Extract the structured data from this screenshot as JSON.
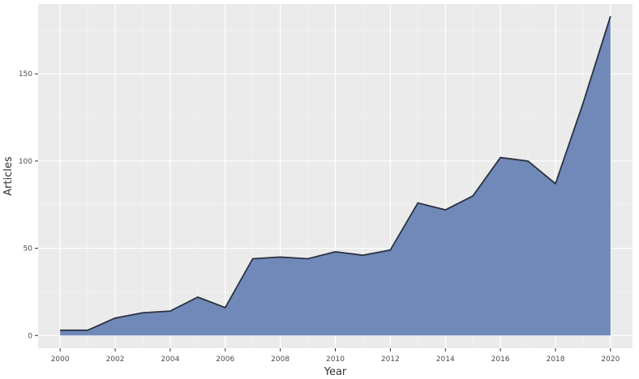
{
  "chart_data": {
    "type": "area",
    "xlabel": "Year",
    "ylabel": "Articles",
    "x": [
      2000,
      2001,
      2002,
      2003,
      2004,
      2005,
      2006,
      2007,
      2008,
      2009,
      2010,
      2011,
      2012,
      2013,
      2014,
      2015,
      2016,
      2017,
      2018,
      2019,
      2020
    ],
    "values": [
      3,
      3,
      10,
      13,
      14,
      22,
      16,
      44,
      45,
      44,
      48,
      46,
      49,
      76,
      72,
      80,
      102,
      100,
      87,
      133,
      183
    ],
    "xlim": [
      1999.2,
      2020.8
    ],
    "ylim": [
      -7.3,
      190
    ],
    "x_ticks": [
      "2000",
      "2002",
      "2004",
      "2006",
      "2008",
      "2010",
      "2012",
      "2014",
      "2016",
      "2018",
      "2020"
    ],
    "y_ticks": [
      "0",
      "50",
      "100",
      "150"
    ],
    "grid": true,
    "colors": {
      "panel_background": "#ebebeb",
      "grid_major": "#ffffff",
      "grid_minor": "#f5f5f5",
      "area_fill": "#7089b8",
      "line": "#2b3140"
    }
  }
}
